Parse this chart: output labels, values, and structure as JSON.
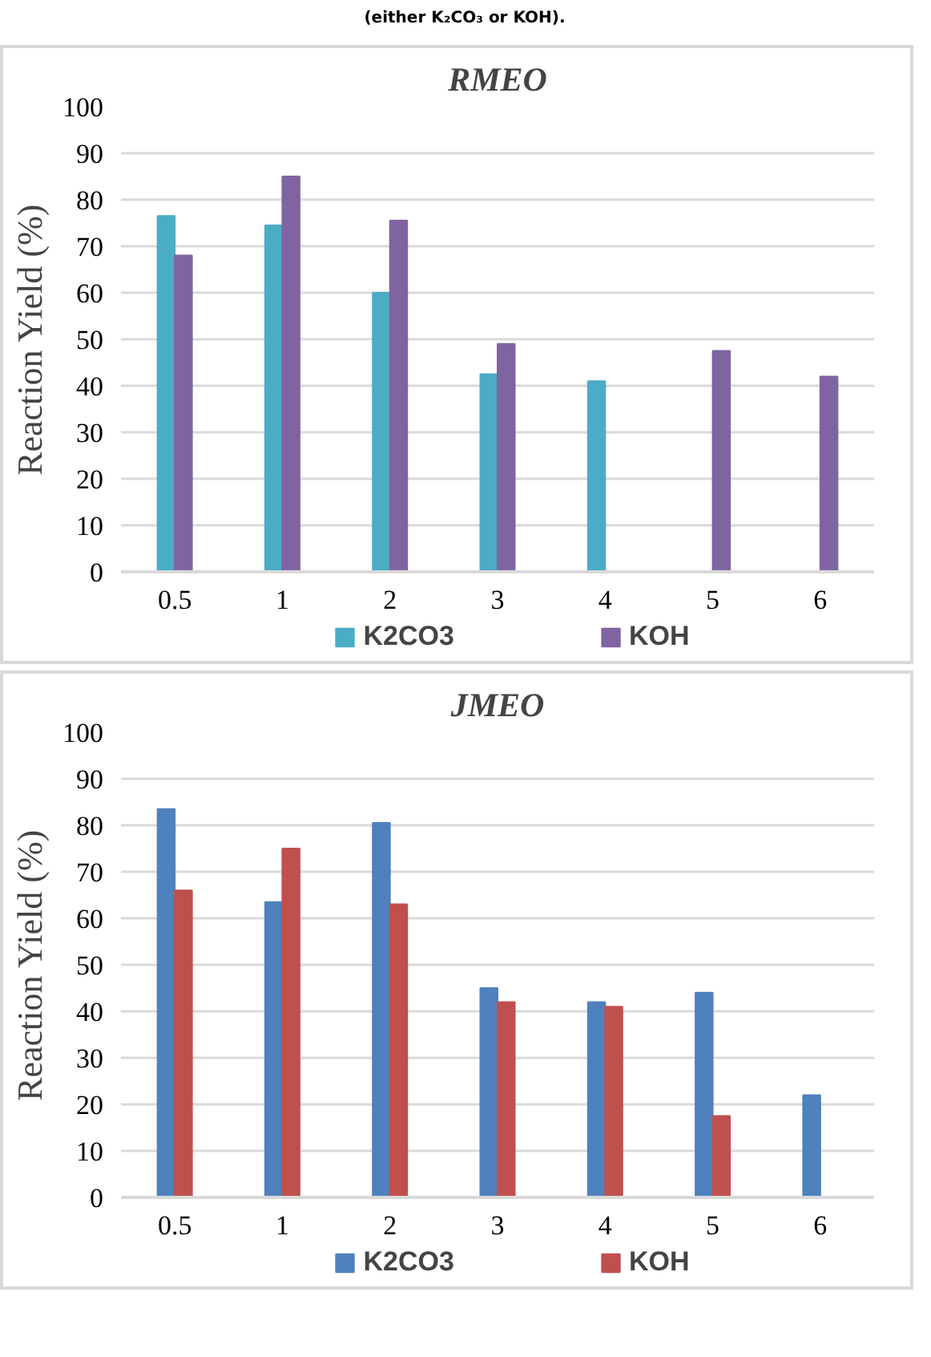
{
  "chart_data": [
    {
      "type": "bar",
      "title": "RMEO",
      "ylabel": "Reaction Yield (%)",
      "annotations": [
        "(either K₂CO₃ or KOH)."
      ],
      "categories": [
        "0.5",
        "1",
        "2",
        "3",
        "4",
        "5",
        "6"
      ],
      "ylim": [
        0,
        100
      ],
      "yticks": [
        0,
        10,
        20,
        30,
        40,
        50,
        60,
        70,
        80,
        90,
        100
      ],
      "grid": "y",
      "legend": "bottom",
      "series": [
        {
          "name": "K2CO3",
          "color": "#4bacc6",
          "values": [
            76.5,
            74.5,
            60,
            42.5,
            41,
            null,
            null
          ]
        },
        {
          "name": "KOH",
          "color": "#8064a2",
          "values": [
            68,
            85,
            75.5,
            49,
            null,
            47.5,
            42
          ]
        }
      ]
    },
    {
      "type": "bar",
      "title": "JMEO",
      "ylabel": "Reaction Yield (%)",
      "categories": [
        "0.5",
        "1",
        "2",
        "3",
        "4",
        "5",
        "6"
      ],
      "ylim": [
        0,
        100
      ],
      "yticks": [
        0,
        10,
        20,
        30,
        40,
        50,
        60,
        70,
        80,
        90,
        100
      ],
      "grid": "y",
      "legend": "bottom",
      "series": [
        {
          "name": "K2CO3",
          "color": "#4f81bd",
          "values": [
            83.5,
            63.5,
            80.5,
            45,
            42,
            44,
            22
          ]
        },
        {
          "name": "KOH",
          "color": "#c0504d",
          "values": [
            66,
            75,
            63,
            42,
            41,
            17.5,
            null
          ]
        }
      ]
    }
  ]
}
